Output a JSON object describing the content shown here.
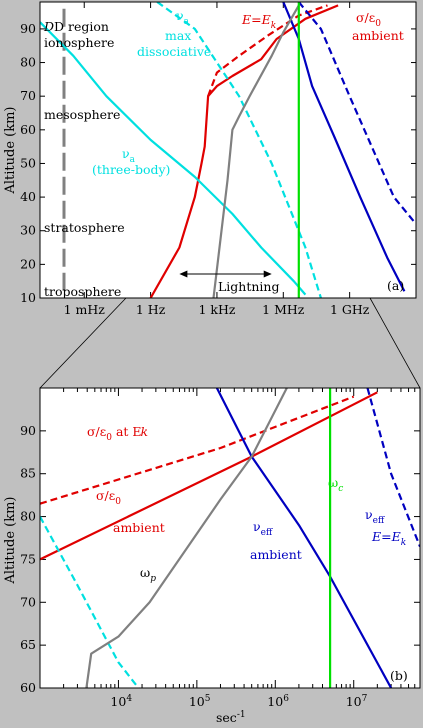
{
  "colors": {
    "background": "#c0c0c0",
    "plot_bg": "#ffffff",
    "red": "#e00000",
    "blue": "#0000c0",
    "cyan": "#00e0e0",
    "gray": "#808080",
    "green": "#00e000",
    "black": "#000000"
  },
  "chart_data": [
    {
      "id": "a",
      "type": "line",
      "panel_label": "(a)",
      "ylabel": "Altitude (km)",
      "xscale": "log",
      "xlim_hz": [
        1e-05,
        1000000000000
      ],
      "ylim": [
        10,
        98
      ],
      "yticks": [
        10,
        20,
        30,
        40,
        50,
        60,
        70,
        80,
        90
      ],
      "xticks": [
        {
          "value": 0.001,
          "label": "1 mHz"
        },
        {
          "value": 1,
          "label": "1 Hz"
        },
        {
          "value": 1000,
          "label": "1 kHz"
        },
        {
          "value": 1000000,
          "label": "1 MHz"
        },
        {
          "value": 1000000000,
          "label": "1 GHz"
        }
      ],
      "regions": [
        "D region",
        "ionosphere",
        "mesosphere",
        "stratosphere",
        "troposphere"
      ],
      "lightning": {
        "label": "Lightning",
        "range_hz": [
          20,
          300000
        ]
      },
      "series": [
        {
          "key": "sigma_ambient",
          "color": "red",
          "style": "solid",
          "points": [
            [
              1,
              10
            ],
            [
              20,
              25
            ],
            [
              100,
              40
            ],
            [
              200,
              50
            ],
            [
              280,
              55
            ],
            [
              400,
              70
            ],
            [
              1000,
              73
            ],
            [
              5000,
              76
            ],
            [
              100000,
              81
            ],
            [
              500000,
              87
            ],
            [
              10000000,
              93
            ],
            [
              300000000,
              97
            ]
          ]
        },
        {
          "key": "sigma_ek",
          "color": "red",
          "style": "dashed",
          "points": [
            [
              400,
              70
            ],
            [
              1000,
              77
            ],
            [
              10000,
              82
            ],
            [
              200000,
              88
            ],
            [
              5000000,
              94
            ],
            [
              100000000,
              97
            ]
          ]
        },
        {
          "key": "nu_eff_ambient",
          "color": "blue",
          "style": "solid",
          "points": [
            [
              1000000,
              98
            ],
            [
              5000000,
              87
            ],
            [
              20000000,
              73
            ],
            [
              200000000,
              58
            ],
            [
              3000000000,
              40
            ],
            [
              50000000000,
              22
            ],
            [
              300000000000,
              12
            ]
          ]
        },
        {
          "key": "nu_eff_ek",
          "color": "blue",
          "style": "dashed",
          "points": [
            [
              5000000,
              98
            ],
            [
              50000000,
              90
            ],
            [
              1000000000,
              70
            ],
            [
              100000000000,
              40
            ],
            [
              1000000000000,
              32
            ]
          ]
        },
        {
          "key": "nu_a_three_body",
          "color": "cyan",
          "style": "solid",
          "points": [
            [
              1e-05,
              92
            ],
            [
              0.00032,
              82
            ],
            [
              0.01,
              70
            ],
            [
              1,
              57
            ],
            [
              100,
              46
            ],
            [
              5000,
              35
            ],
            [
              100000,
              25
            ],
            [
              3000000,
              15
            ],
            [
              10000000,
              11
            ]
          ]
        },
        {
          "key": "nu_a_dissociative",
          "color": "cyan",
          "style": "dashed",
          "points": [
            [
              2,
              98
            ],
            [
              100,
              90
            ],
            [
              10000,
              70
            ],
            [
              300000,
              50
            ],
            [
              10000000,
              25
            ],
            [
              50000000,
              10
            ]
          ]
        },
        {
          "key": "omega_p",
          "color": "gray",
          "style": "solid",
          "points": [
            [
              700,
              10
            ],
            [
              3000,
              45
            ],
            [
              5000,
              60
            ],
            [
              10000,
              64
            ],
            [
              30000,
              70
            ],
            [
              300000,
              82
            ],
            [
              1000000,
              89
            ],
            [
              5000000,
              97
            ]
          ]
        },
        {
          "key": "omega_c",
          "color": "green",
          "style": "solid",
          "points": [
            [
              5000000,
              10
            ],
            [
              5000000,
              98
            ]
          ]
        }
      ],
      "labels": {
        "nu_a_max": [
          "ν",
          "a",
          "max",
          "dissociative"
        ],
        "e_ek": [
          "E=E",
          "k"
        ],
        "sigma_eps": [
          "σ/ε",
          "0",
          "ambient"
        ],
        "nu_a_three": [
          "ν",
          "a",
          "(three-body)"
        ]
      }
    },
    {
      "id": "b",
      "type": "line",
      "panel_label": "(b)",
      "ylabel": "Altitude (km)",
      "xlabel": "sec",
      "xlabel_exponent": "-1",
      "xscale": "log",
      "xlim": [
        1000,
        70000000
      ],
      "ylim": [
        60,
        95
      ],
      "yticks": [
        60,
        65,
        70,
        75,
        80,
        85,
        90
      ],
      "xticks": [
        {
          "value": 10000,
          "base": "10",
          "exp": "4"
        },
        {
          "value": 100000,
          "base": "10",
          "exp": "5"
        },
        {
          "value": 1000000,
          "base": "10",
          "exp": "6"
        },
        {
          "value": 10000000,
          "base": "10",
          "exp": "7"
        }
      ],
      "series": [
        {
          "key": "sigma_ambient",
          "color": "red",
          "style": "solid",
          "points": [
            [
              1000,
              75
            ],
            [
              500000,
              87
            ],
            [
              20000000,
              94.5
            ]
          ]
        },
        {
          "key": "sigma_ek",
          "color": "red",
          "style": "dashed",
          "points": [
            [
              1000,
              81.5
            ],
            [
              200000,
              88
            ],
            [
              10000000,
              94
            ]
          ]
        },
        {
          "key": "nu_eff_ambient",
          "color": "blue",
          "style": "solid",
          "points": [
            [
              180000,
              95
            ],
            [
              500000,
              87
            ],
            [
              2000000,
              79
            ],
            [
              5000000,
              73
            ],
            [
              30000000,
              60
            ]
          ]
        },
        {
          "key": "nu_eff_ek",
          "color": "blue",
          "style": "dashed",
          "points": [
            [
              15000000,
              95
            ],
            [
              30000000,
              85
            ],
            [
              70000000,
              76.5
            ]
          ]
        },
        {
          "key": "nu_a",
          "color": "cyan",
          "style": "dashed",
          "points": [
            [
              1000,
              80
            ],
            [
              3000,
              72
            ],
            [
              10000,
              63
            ],
            [
              18000,
              60
            ]
          ]
        },
        {
          "key": "omega_p",
          "color": "gray",
          "style": "solid",
          "points": [
            [
              3900,
              60
            ],
            [
              4500,
              64
            ],
            [
              10000,
              66
            ],
            [
              25000,
              70
            ],
            [
              200000,
              82
            ],
            [
              500000,
              87
            ],
            [
              1400000,
              95
            ]
          ]
        },
        {
          "key": "omega_c",
          "color": "green",
          "style": "solid",
          "points": [
            [
              5000000,
              60
            ],
            [
              5000000,
              95
            ]
          ]
        }
      ],
      "labels": {
        "sigma_ek": [
          "σ/ε",
          "0",
          " at E",
          "k"
        ],
        "sigma_amb": [
          "σ/ε",
          "0",
          "ambient"
        ],
        "omega_p": [
          "ω",
          "p"
        ],
        "omega_c": [
          "ω",
          "c"
        ],
        "nu_eff_amb": [
          "ν",
          "eff",
          "ambient"
        ],
        "nu_eff_ek": [
          "ν",
          "eff",
          "E=E",
          "k"
        ]
      }
    }
  ]
}
